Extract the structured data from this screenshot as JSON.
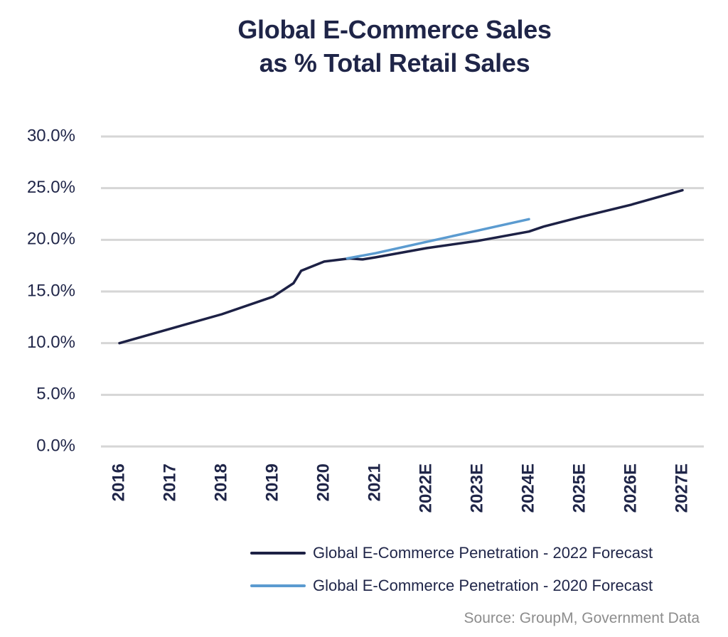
{
  "title_line1": "Global E-Commerce Sales",
  "title_line2": "as % Total Retail Sales",
  "source": "Source: GroupM, Government Data",
  "colors": {
    "text": "#1f2548",
    "grid": "#d6d6d6",
    "series_2022": "#1d2145",
    "series_2020": "#5b9bd0",
    "source": "#8d8d8d"
  },
  "chart_data": {
    "type": "line",
    "title": "Global E-Commerce Sales as % Total Retail Sales",
    "xlabel": "",
    "ylabel": "",
    "categories": [
      "2016",
      "2017",
      "2018",
      "2019",
      "2020",
      "2021",
      "2022E",
      "2023E",
      "2024E",
      "2025E",
      "2026E",
      "2027E"
    ],
    "ylim": [
      0,
      30
    ],
    "yticks": [
      0,
      5,
      10,
      15,
      20,
      25,
      30
    ],
    "ytick_labels": [
      "0.0%",
      "5.0%",
      "10.0%",
      "15.0%",
      "20.0%",
      "25.0%",
      "30.0%"
    ],
    "grid": true,
    "legend_position": "bottom-right",
    "series": [
      {
        "name": "Global E-Commerce Penetration - 2022 Forecast",
        "color": "#1d2145",
        "points": [
          [
            0,
            10.0
          ],
          [
            1,
            11.4
          ],
          [
            2,
            12.8
          ],
          [
            3,
            14.5
          ],
          [
            3.4,
            15.8
          ],
          [
            3.55,
            17.0
          ],
          [
            4,
            17.9
          ],
          [
            4.5,
            18.2
          ],
          [
            4.75,
            18.1
          ],
          [
            5,
            18.3
          ],
          [
            6,
            19.2
          ],
          [
            7,
            19.9
          ],
          [
            8,
            20.8
          ],
          [
            8.3,
            21.3
          ],
          [
            9,
            22.2
          ],
          [
            10,
            23.4
          ],
          [
            11,
            24.8
          ]
        ]
      },
      {
        "name": "Global E-Commerce Penetration - 2020 Forecast",
        "color": "#5b9bd0",
        "points": [
          [
            4.45,
            18.2
          ],
          [
            5,
            18.7
          ],
          [
            6,
            19.8
          ],
          [
            7,
            20.9
          ],
          [
            8,
            22.0
          ]
        ]
      }
    ]
  }
}
